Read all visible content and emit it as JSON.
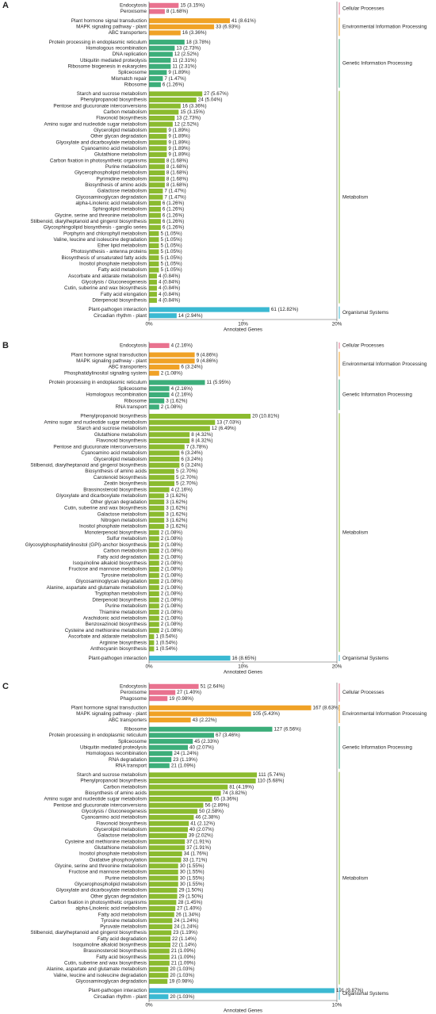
{
  "chart_data": [
    {
      "type": "bar",
      "orientation": "horizontal",
      "panel": "A",
      "xlabel": "Annotated Genes",
      "xlim": [
        0,
        20
      ],
      "xticks": [
        {
          "value": 0,
          "label": "0%"
        },
        {
          "value": 10,
          "label": "10%"
        },
        {
          "value": 20,
          "label": "20%"
        }
      ],
      "groups": [
        {
          "name": "Cellular Processes",
          "color": "#e9728f",
          "categories": [
            "Endocytosis",
            "Peroxisome"
          ],
          "values": [
            3.15,
            1.68
          ],
          "value_labels": [
            "15 (3.15%)",
            "8 (1.68%)"
          ]
        },
        {
          "name": "Environmental Information Processing",
          "color": "#f0a226",
          "categories": [
            "Plant hormone signal transduction",
            "MAPK signaling pathway - plant",
            "ABC transporters"
          ],
          "values": [
            8.61,
            6.93,
            3.36
          ],
          "value_labels": [
            "41 (8.61%)",
            "33 (6.93%)",
            "16 (3.36%)"
          ]
        },
        {
          "name": "Genetic Information Processing",
          "color": "#3cae7a",
          "categories": [
            "Protein processing in endoplasmic reticulum",
            "Homologous recombination",
            "DNA replication",
            "Ubiquitin mediated proteolysis",
            "Ribosome biogenesis in eukaryotes",
            "Spliceosome",
            "Mismatch repair",
            "Ribosome"
          ],
          "values": [
            3.78,
            2.73,
            2.52,
            2.31,
            2.31,
            1.89,
            1.47,
            1.26
          ],
          "value_labels": [
            "18 (3.78%)",
            "13 (2.73%)",
            "12 (2.52%)",
            "11 (2.31%)",
            "11 (2.31%)",
            "9 (1.89%)",
            "7 (1.47%)",
            "6 (1.26%)"
          ]
        },
        {
          "name": "Metabolism",
          "color": "#8bbb2f",
          "categories": [
            "Starch and sucrose metabolism",
            "Phenylpropanoid biosynthesis",
            "Pentose and glucuronate interconversions",
            "Carbon metabolism",
            "Flavonoid biosynthesis",
            "Amino sugar and nucleotide sugar metabolism",
            "Glycerolipid metabolism",
            "Other glycan degradation",
            "Glyoxylate and dicarboxylate metabolism",
            "Cyanoamino acid metabolism",
            "Glutathione metabolism",
            "Carbon fixation in photosynthetic organisms",
            "Purine metabolism",
            "Glycerophospholipid metabolism",
            "Pyrimidine metabolism",
            "Biosynthesis of amino acids",
            "Galactose metabolism",
            "Glycosaminoglycan degradation",
            "alpha-Linolenic acid metabolism",
            "Sphingolipid metabolism",
            "Glycine, serine and threonine metabolism",
            "Stilbenoid, diarylheptanoid and gingerol biosynthesis",
            "Glycosphingolipid biosynthesis - ganglio series",
            "Porphyrin and chlorophyll metabolism",
            "Valine, leucine and isoleucine degradation",
            "Ether lipid metabolism",
            "Photosynthesis - antenna proteins",
            "Biosynthesis of unsaturated fatty acids",
            "Inositol phosphate metabolism",
            "Fatty acid metabolism",
            "Ascorbate and aldarate metabolism",
            "Glycolysis / Gluconeogenesis",
            "Cutin, suberine and wax biosynthesis",
            "Fatty acid elongation",
            "Diterpenoid biosynthesis"
          ],
          "values": [
            5.67,
            5.04,
            3.36,
            3.15,
            2.73,
            2.52,
            1.89,
            1.89,
            1.89,
            1.89,
            1.89,
            1.68,
            1.68,
            1.68,
            1.68,
            1.68,
            1.47,
            1.47,
            1.26,
            1.26,
            1.26,
            1.26,
            1.26,
            1.05,
            1.05,
            1.05,
            1.05,
            1.05,
            1.05,
            1.05,
            0.84,
            0.84,
            0.84,
            0.84,
            0.84
          ],
          "value_labels": [
            "27 (5.67%)",
            "24 (5.04%)",
            "16 (3.36%)",
            "15 (3.15%)",
            "13 (2.73%)",
            "12 (2.52%)",
            "9 (1.89%)",
            "9 (1.89%)",
            "9 (1.89%)",
            "9 (1.89%)",
            "9 (1.89%)",
            "8 (1.68%)",
            "8 (1.68%)",
            "8 (1.68%)",
            "8 (1.68%)",
            "8 (1.68%)",
            "7 (1.47%)",
            "7 (1.47%)",
            "6 (1.26%)",
            "6 (1.26%)",
            "6 (1.26%)",
            "6 (1.26%)",
            "6 (1.26%)",
            "5 (1.05%)",
            "5 (1.05%)",
            "5 (1.05%)",
            "5 (1.05%)",
            "5 (1.05%)",
            "5 (1.05%)",
            "5 (1.05%)",
            "4 (0.84%)",
            "4 (0.84%)",
            "4 (0.84%)",
            "4 (0.84%)",
            "4 (0.84%)"
          ]
        },
        {
          "name": "Organismal Systems",
          "color": "#3bb9d2",
          "categories": [
            "Plant-pathogen interaction",
            "Circadian rhythm - plant"
          ],
          "values": [
            12.82,
            2.94
          ],
          "value_labels": [
            "61 (12.82%)",
            "14 (2.94%)"
          ]
        }
      ]
    },
    {
      "type": "bar",
      "orientation": "horizontal",
      "panel": "B",
      "xlabel": "Annotated Genes",
      "xlim": [
        0,
        20
      ],
      "xticks": [
        {
          "value": 0,
          "label": "0%"
        },
        {
          "value": 10,
          "label": "10%"
        },
        {
          "value": 20,
          "label": "20%"
        }
      ],
      "groups": [
        {
          "name": "Cellular Processes",
          "color": "#e9728f",
          "categories": [
            "Endocytosis"
          ],
          "values": [
            2.16
          ],
          "value_labels": [
            "4 (2.16%)"
          ]
        },
        {
          "name": "Environmental Information Processing",
          "color": "#f0a226",
          "categories": [
            "Plant hormone signal transduction",
            "MAPK signaling pathway - plant",
            "ABC transporters",
            "Phosphatidylinositol signaling system"
          ],
          "values": [
            4.86,
            4.86,
            3.24,
            1.08
          ],
          "value_labels": [
            "9 (4.86%)",
            "9 (4.86%)",
            "6 (3.24%)",
            "2 (1.08%)"
          ]
        },
        {
          "name": "Genetic Information Processing",
          "color": "#3cae7a",
          "categories": [
            "Protein processing in endoplasmic reticulum",
            "Spliceosome",
            "Homologous recombination",
            "Ribosome",
            "RNA transport"
          ],
          "values": [
            5.95,
            2.16,
            2.16,
            1.62,
            1.08
          ],
          "value_labels": [
            "11 (5.95%)",
            "4 (2.16%)",
            "4 (2.16%)",
            "3 (1.62%)",
            "2 (1.08%)"
          ]
        },
        {
          "name": "Metabolism",
          "color": "#8bbb2f",
          "categories": [
            "Phenylpropanoid biosynthesis",
            "Amino sugar and nucleotide sugar metabolism",
            "Starch and sucrose metabolism",
            "Glutathione metabolism",
            "Flavonoid biosynthesis",
            "Pentose and glucuronate interconversions",
            "Cyanoamino acid metabolism",
            "Glycerolipid metabolism",
            "Stilbenoid, diarylheptanoid and gingerol biosynthesis",
            "Biosynthesis of amino acids",
            "Carotenoid biosynthesis",
            "Zeatin biosynthesis",
            "Brassinosteroid biosynthesis",
            "Glyoxylate and dicarboxylate metabolism",
            "Other glycan degradation",
            "Cutin, suberine and wax biosynthesis",
            "Galactose metabolism",
            "Nitrogen metabolism",
            "Inositol phosphate metabolism",
            "Monoterpenoid biosynthesis",
            "Sulfur metabolism",
            "Glycosylphosphatidylinositol (GPI)-anchor biosynthesis",
            "Carbon metabolism",
            "Fatty acid degradation",
            "Isoquinoline alkaloid biosynthesis",
            "Fructose and mannose metabolism",
            "Tyrosine metabolism",
            "Glycosaminoglycan degradation",
            "Alanine, aspartate and glutamate metabolism",
            "Tryptophan metabolism",
            "Diterpenoid biosynthesis",
            "Purine metabolism",
            "Thiamine metabolism",
            "Arachidonic acid metabolism",
            "Benzoxazinoid biosynthesis",
            "Cysteine and methionine metabolism",
            "Ascorbate and aldarate metabolism",
            "Arginine biosynthesis",
            "Anthocyanin biosynthesis"
          ],
          "values": [
            10.81,
            7.03,
            6.49,
            4.32,
            4.32,
            3.78,
            3.24,
            3.24,
            3.24,
            2.7,
            2.7,
            2.7,
            2.16,
            1.62,
            1.62,
            1.62,
            1.62,
            1.62,
            1.62,
            1.08,
            1.08,
            1.08,
            1.08,
            1.08,
            1.08,
            1.08,
            1.08,
            1.08,
            1.08,
            1.08,
            1.08,
            1.08,
            1.08,
            1.08,
            1.08,
            1.08,
            0.54,
            0.54,
            0.54
          ],
          "value_labels": [
            "20 (10.81%)",
            "13 (7.03%)",
            "12 (6.49%)",
            "8 (4.32%)",
            "8 (4.32%)",
            "7 (3.78%)",
            "6 (3.24%)",
            "6 (3.24%)",
            "6 (3.24%)",
            "5 (2.70%)",
            "5 (2.70%)",
            "5 (2.70%)",
            "4 (2.16%)",
            "3 (1.62%)",
            "3 (1.62%)",
            "3 (1.62%)",
            "3 (1.62%)",
            "3 (1.62%)",
            "3 (1.62%)",
            "2 (1.08%)",
            "2 (1.08%)",
            "2 (1.08%)",
            "2 (1.08%)",
            "2 (1.08%)",
            "2 (1.08%)",
            "2 (1.08%)",
            "2 (1.08%)",
            "2 (1.08%)",
            "2 (1.08%)",
            "2 (1.08%)",
            "2 (1.08%)",
            "2 (1.08%)",
            "2 (1.08%)",
            "2 (1.08%)",
            "2 (1.08%)",
            "2 (1.08%)",
            "1 (0.54%)",
            "1 (0.54%)",
            "1 (0.54%)"
          ]
        },
        {
          "name": "Organismal Systems",
          "color": "#3bb9d2",
          "categories": [
            "Plant-pathogen interaction"
          ],
          "values": [
            8.65
          ],
          "value_labels": [
            "16 (8.65%)"
          ]
        }
      ]
    },
    {
      "type": "bar",
      "orientation": "horizontal",
      "panel": "C",
      "xlabel": "Annotated Genes",
      "xlim": [
        0,
        10
      ],
      "xticks": [
        {
          "value": 0,
          "label": "0%"
        },
        {
          "value": 10,
          "label": "10%"
        }
      ],
      "groups": [
        {
          "name": "Cellular Processes",
          "color": "#e9728f",
          "categories": [
            "Endocytosis",
            "Peroxisome",
            "Phagosome"
          ],
          "values": [
            2.64,
            1.4,
            0.98
          ],
          "value_labels": [
            "51 (2.64%)",
            "27 (1.40%)",
            "19 (0.98%)"
          ]
        },
        {
          "name": "Environmental Information Processing",
          "color": "#f0a226",
          "categories": [
            "Plant hormone signal transduction",
            "MAPK signaling pathway - plant",
            "ABC transporters"
          ],
          "values": [
            8.63,
            5.43,
            2.22
          ],
          "value_labels": [
            "167 (8.63%)",
            "105 (5.43%)",
            "43 (2.22%)"
          ]
        },
        {
          "name": "Genetic Information Processing",
          "color": "#3cae7a",
          "categories": [
            "Ribosome",
            "Protein processing in endoplasmic reticulum",
            "Spliceosome",
            "Ubiquitin mediated proteolysis",
            "Homologous recombination",
            "RNA degradation",
            "RNA transport"
          ],
          "values": [
            6.56,
            3.46,
            2.33,
            2.07,
            1.24,
            1.19,
            1.09
          ],
          "value_labels": [
            "127 (6.56%)",
            "67 (3.46%)",
            "45 (2.33%)",
            "40 (2.07%)",
            "24 (1.24%)",
            "23 (1.19%)",
            "21 (1.09%)"
          ]
        },
        {
          "name": "Metabolism",
          "color": "#8bbb2f",
          "categories": [
            "Starch and sucrose metabolism",
            "Phenylpropanoid biosynthesis",
            "Carbon metabolism",
            "Biosynthesis of amino acids",
            "Amino sugar and nucleotide sugar metabolism",
            "Pentose and glucuronate interconversions",
            "Glycolysis / Gluconeogenesis",
            "Cyanoamino acid metabolism",
            "Flavonoid biosynthesis",
            "Glycerolipid metabolism",
            "Galactose metabolism",
            "Cysteine and methionine metabolism",
            "Glutathione metabolism",
            "Inositol phosphate metabolism",
            "Oxidative phosphorylation",
            "Glycine, serine and threonine metabolism",
            "Fructose and mannose metabolism",
            "Purine metabolism",
            "Glycerophospholipid metabolism",
            "Glyoxylate and dicarboxylate metabolism",
            "Other glycan degradation",
            "Carbon fixation in photosynthetic organisms",
            "alpha-Linolenic acid metabolism",
            "Fatty acid metabolism",
            "Tyrosine metabolism",
            "Pyruvate metabolism",
            "Stilbenoid, diarylheptanoid and gingerol biosynthesis",
            "Fatty acid degradation",
            "Isoquinoline alkaloid biosynthesis",
            "Brassinosteroid biosynthesis",
            "Fatty acid biosynthesis",
            "Cutin, suberine and wax biosynthesis",
            "Alanine, aspartate and glutamate metabolism",
            "Valine, leucine and isoleucine degradation",
            "Glycosaminoglycan degradation"
          ],
          "values": [
            5.74,
            5.68,
            4.19,
            3.82,
            3.36,
            2.89,
            2.58,
            2.38,
            2.12,
            2.07,
            2.02,
            1.91,
            1.91,
            1.76,
            1.71,
            1.55,
            1.55,
            1.55,
            1.55,
            1.5,
            1.5,
            1.45,
            1.4,
            1.34,
            1.24,
            1.24,
            1.19,
            1.14,
            1.14,
            1.09,
            1.09,
            1.09,
            1.03,
            1.03,
            0.98
          ],
          "value_labels": [
            "111 (5.74%)",
            "110 (5.68%)",
            "81 (4.19%)",
            "74 (3.82%)",
            "65 (3.36%)",
            "56 (2.89%)",
            "50 (2.58%)",
            "46 (2.38%)",
            "41 (2.12%)",
            "40 (2.07%)",
            "39 (2.02%)",
            "37 (1.91%)",
            "37 (1.91%)",
            "34 (1.76%)",
            "33 (1.71%)",
            "30 (1.55%)",
            "30 (1.55%)",
            "30 (1.55%)",
            "30 (1.55%)",
            "29 (1.50%)",
            "29 (1.50%)",
            "28 (1.45%)",
            "27 (1.40%)",
            "26 (1.34%)",
            "24 (1.24%)",
            "24 (1.24%)",
            "23 (1.19%)",
            "22 (1.14%)",
            "22 (1.14%)",
            "21 (1.09%)",
            "21 (1.09%)",
            "21 (1.09%)",
            "20 (1.03%)",
            "20 (1.03%)",
            "19 (0.98%)"
          ]
        },
        {
          "name": "Organismal Systems",
          "color": "#3bb9d2",
          "categories": [
            "Plant-pathogen interaction",
            "Circadian rhythm - plant"
          ],
          "values": [
            9.87,
            1.03
          ],
          "value_labels": [
            "191 (9.87%)",
            "20 (1.03%)"
          ]
        }
      ]
    }
  ]
}
